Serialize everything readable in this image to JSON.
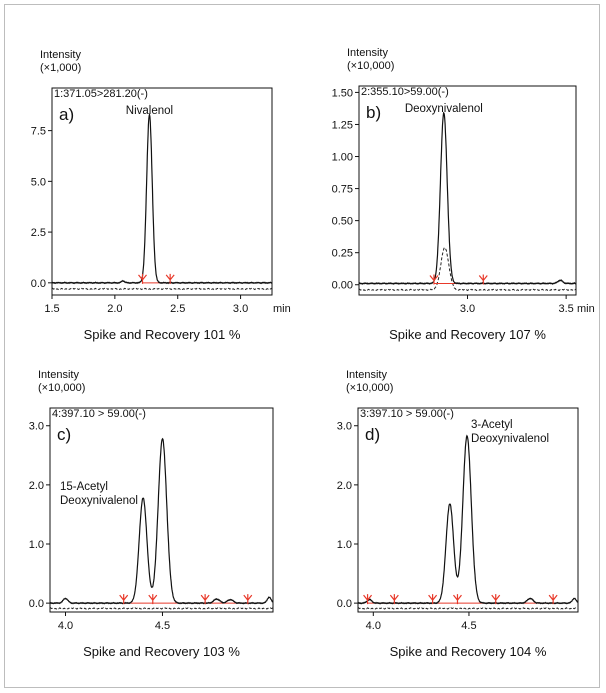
{
  "chart_data": [
    {
      "type": "line",
      "panel": "a)",
      "intensity_label": "Intensity",
      "scale_label": "(×1,000)",
      "transition": "1:371.05>281.20(-)",
      "peak_label": "Nivalenol",
      "caption": "Spike and Recovery 101 %",
      "x_unit": "min",
      "xlim": [
        1.5,
        3.25
      ],
      "ylim": [
        -0.6,
        9.6
      ],
      "x_ticks": [
        "1.5",
        "2.0",
        "2.5",
        "3.0"
      ],
      "x_tick_values": [
        1.5,
        2.0,
        2.5,
        3.0
      ],
      "y_ticks": [
        "0.0",
        "2.5",
        "5.0",
        "7.5"
      ],
      "y_tick_values": [
        0.0,
        2.5,
        5.0,
        7.5
      ],
      "peaks": [
        {
          "rt": 2.275,
          "height": 8.3,
          "width": 0.022
        },
        {
          "rt": 2.065,
          "height": 0.1,
          "width": 0.012
        }
      ],
      "baseline": 0.0,
      "reference_trace_offset": -0.3,
      "markers": [
        2.22,
        2.44
      ],
      "integration_line": [
        2.22,
        2.44
      ]
    },
    {
      "type": "line",
      "panel": "b)",
      "intensity_label": "Intensity",
      "scale_label": "(×10,000)",
      "transition": "2:355.10>59.00(-)",
      "peak_label": "Deoxynivalenol",
      "caption": "Spike and Recovery 107 %",
      "x_unit": "min",
      "xlim": [
        2.45,
        3.55
      ],
      "ylim": [
        -0.08,
        1.55
      ],
      "x_ticks": [
        "3.0",
        "3.5"
      ],
      "x_tick_values": [
        3.0,
        3.5
      ],
      "y_ticks": [
        "0.00",
        "0.25",
        "0.50",
        "0.75",
        "1.00",
        "1.25",
        "1.50"
      ],
      "y_tick_values": [
        0.0,
        0.25,
        0.5,
        0.75,
        1.0,
        1.25,
        1.5
      ],
      "peaks": [
        {
          "rt": 2.88,
          "height": 1.33,
          "width": 0.017
        },
        {
          "rt": 3.47,
          "height": 0.025,
          "width": 0.012
        }
      ],
      "baseline": 0.01,
      "reference_peaks": [
        {
          "rt": 2.885,
          "height": 0.33,
          "width": 0.02
        }
      ],
      "reference_trace_offset": -0.04,
      "markers": [
        2.83,
        3.08
      ],
      "integration_line": [
        2.83,
        3.08
      ]
    },
    {
      "type": "line",
      "panel": "c)",
      "intensity_label": "Intensity",
      "scale_label": "(×10,000)",
      "transition": "4:397.10 > 59.00(-)",
      "peak_label": [
        "15-Acetyl",
        "Deoxynivalenol"
      ],
      "caption": "Spike and Recovery 103 %",
      "x_unit": "",
      "xlim": [
        3.92,
        5.07
      ],
      "ylim": [
        -0.15,
        3.3
      ],
      "x_ticks": [
        "4.0",
        "4.5"
      ],
      "x_tick_values": [
        4.0,
        4.5
      ],
      "y_ticks": [
        "0.0",
        "1.0",
        "2.0",
        "3.0"
      ],
      "y_tick_values": [
        0.0,
        1.0,
        2.0,
        3.0
      ],
      "peaks": [
        {
          "rt": 4.4,
          "height": 1.78,
          "width": 0.02
        },
        {
          "rt": 4.5,
          "height": 2.78,
          "width": 0.022
        },
        {
          "rt": 4.0,
          "height": 0.08,
          "width": 0.012
        },
        {
          "rt": 4.78,
          "height": 0.07,
          "width": 0.015
        },
        {
          "rt": 4.85,
          "height": 0.06,
          "width": 0.015
        },
        {
          "rt": 5.05,
          "height": 0.1,
          "width": 0.01
        }
      ],
      "baseline": 0.0,
      "reference_trace_offset": -0.09,
      "markers": [
        4.3,
        4.45,
        4.72,
        4.94
      ],
      "integration_line": [
        4.3,
        4.94
      ]
    },
    {
      "type": "line",
      "panel": "d)",
      "intensity_label": "Intensity",
      "scale_label": "(×10,000)",
      "transition": "3:397.10 > 59.00(-)",
      "peak_label": [
        "3-Acetyl",
        "Deoxynivalenol"
      ],
      "caption": "Spike and Recovery 104 %",
      "x_unit": "",
      "xlim": [
        3.92,
        5.07
      ],
      "ylim": [
        -0.15,
        3.3
      ],
      "x_ticks": [
        "4.0",
        "4.5"
      ],
      "x_tick_values": [
        4.0,
        4.5
      ],
      "y_ticks": [
        "0.0",
        "1.0",
        "2.0",
        "3.0"
      ],
      "y_tick_values": [
        0.0,
        1.0,
        2.0,
        3.0
      ],
      "peaks": [
        {
          "rt": 4.4,
          "height": 1.68,
          "width": 0.02
        },
        {
          "rt": 4.49,
          "height": 2.83,
          "width": 0.022
        },
        {
          "rt": 3.98,
          "height": 0.06,
          "width": 0.012
        },
        {
          "rt": 4.82,
          "height": 0.08,
          "width": 0.015
        },
        {
          "rt": 5.05,
          "height": 0.08,
          "width": 0.01
        }
      ],
      "baseline": 0.0,
      "reference_trace_offset": -0.09,
      "markers": [
        3.97,
        4.11,
        4.31,
        4.44,
        4.64,
        4.94
      ],
      "integration_line": [
        3.97,
        4.94
      ]
    }
  ],
  "colors": {
    "trace": "#111111",
    "reference_trace": "#222222",
    "marker": "#e8392a",
    "frame": "#bdbdbd"
  }
}
